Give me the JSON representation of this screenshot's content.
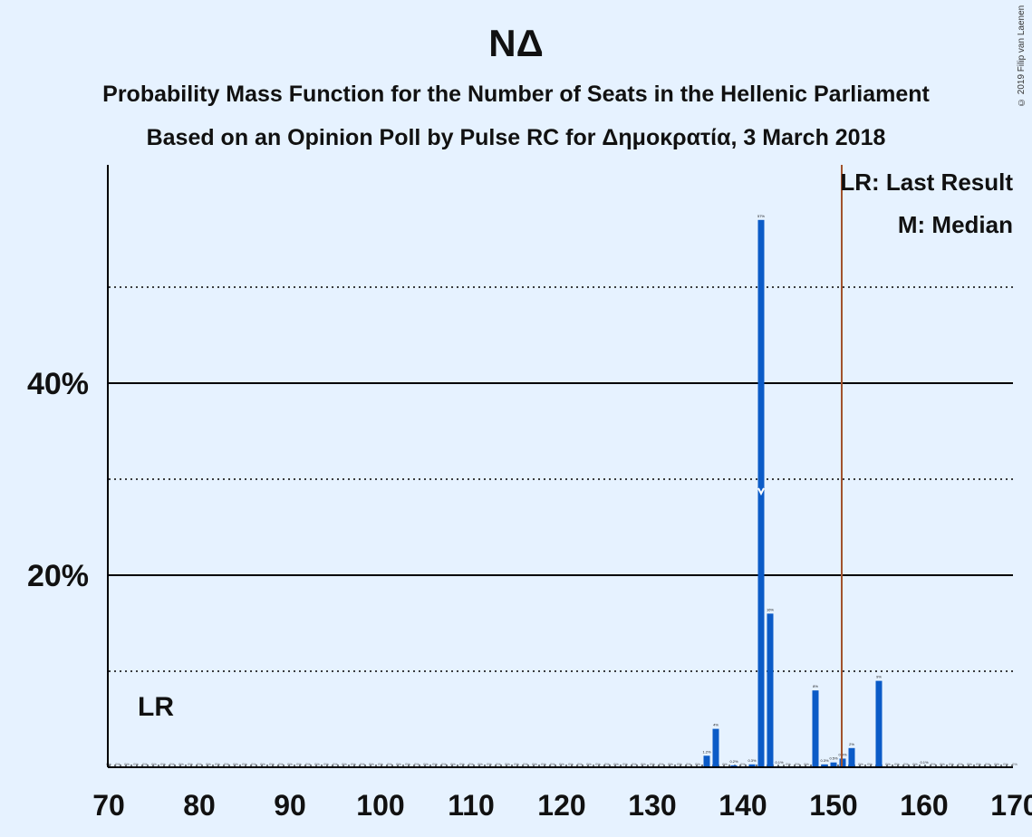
{
  "title": "ΝΔ",
  "subtitle_line1": "Probability Mass Function for the Number of Seats in the Hellenic Parliament",
  "subtitle_line2": "Based on an Opinion Poll by Pulse RC for Δημοκρατία, 3 March 2018",
  "copyright": "© 2019 Filip van Laenen",
  "colors": {
    "background": "#e6f2ff",
    "bar": "#0b5bc7",
    "last_result_line": "#a0522d",
    "median_marker": "#ffffff"
  },
  "chart_data": {
    "type": "bar",
    "xlim": [
      70,
      170
    ],
    "ylim": [
      0,
      62
    ],
    "x_ticks": [
      "70",
      "80",
      "90",
      "100",
      "110",
      "120",
      "130",
      "140",
      "150",
      "160",
      "170"
    ],
    "x_tick_values": [
      70,
      80,
      90,
      100,
      110,
      120,
      130,
      140,
      150,
      160,
      170
    ],
    "y_ticks": [
      "20%",
      "40%"
    ],
    "y_tick_values": [
      20,
      40
    ],
    "solid_gridlines": [
      20,
      40
    ],
    "dotted_gridlines": [
      10,
      30,
      50
    ],
    "grid": true,
    "legend": {
      "position": "top-right",
      "items": [
        "LR: Last Result",
        "M: Median"
      ]
    },
    "last_result": {
      "seat": 151,
      "label": "LR"
    },
    "median": 142,
    "bars": [
      {
        "seat": 136,
        "value": 1.2,
        "label": "1.2%"
      },
      {
        "seat": 137,
        "value": 4,
        "label": "4%"
      },
      {
        "seat": 139,
        "value": 0.2,
        "label": "0.2%"
      },
      {
        "seat": 141,
        "value": 0.3,
        "label": "0.3%"
      },
      {
        "seat": 142,
        "value": 57,
        "label": "57%"
      },
      {
        "seat": 143,
        "value": 16,
        "label": "16%"
      },
      {
        "seat": 144,
        "value": 0.1,
        "label": "0.1%"
      },
      {
        "seat": 148,
        "value": 8,
        "label": "8%"
      },
      {
        "seat": 149,
        "value": 0.3,
        "label": "0.3%"
      },
      {
        "seat": 150,
        "value": 0.5,
        "label": "0.5%"
      },
      {
        "seat": 151,
        "value": 0.9,
        "label": "0.9%"
      },
      {
        "seat": 152,
        "value": 2,
        "label": "2%"
      },
      {
        "seat": 155,
        "value": 9,
        "label": "9%"
      },
      {
        "seat": 160,
        "value": 0.1,
        "label": "0.1%"
      }
    ],
    "zero_label": "0%"
  }
}
